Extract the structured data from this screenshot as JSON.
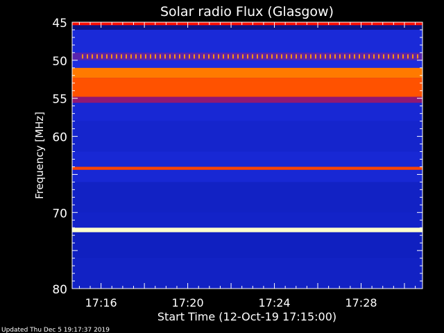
{
  "chart_data": {
    "type": "heatmap",
    "title": "Solar radio Flux (Glasgow)",
    "xlabel": "Start Time (12-Oct-19 17:15:00)",
    "ylabel": "Frequency [MHz]",
    "x_unit": "time of day (HH:MM)",
    "xlim": [
      "17:14:40",
      "17:30:50"
    ],
    "ylim": [
      45,
      80
    ],
    "y_direction": "increasing downward",
    "x_ticks": [
      "17:16",
      "17:20",
      "17:24",
      "17:28"
    ],
    "y_ticks": [
      45,
      50,
      55,
      60,
      70,
      80
    ],
    "colormap": [
      "#000030",
      "#1020c0",
      "#2030e8",
      "#ff0000",
      "#ff8800",
      "#ffffcc"
    ],
    "intensity_scale": "relative (0 = background, 1 = saturated)",
    "frequency_bands": [
      {
        "from_mhz": 45.0,
        "to_mhz": 45.4,
        "level": 0.62
      },
      {
        "from_mhz": 45.4,
        "to_mhz": 46.0,
        "level": 0.12
      },
      {
        "from_mhz": 46.0,
        "to_mhz": 49.0,
        "level": 0.32
      },
      {
        "from_mhz": 49.0,
        "to_mhz": 50.0,
        "level": 0.45
      },
      {
        "from_mhz": 50.0,
        "to_mhz": 51.0,
        "level": 0.35
      },
      {
        "from_mhz": 51.0,
        "to_mhz": 52.3,
        "level": 0.78
      },
      {
        "from_mhz": 52.3,
        "to_mhz": 54.8,
        "level": 0.72
      },
      {
        "from_mhz": 54.8,
        "to_mhz": 55.6,
        "level": 0.5
      },
      {
        "from_mhz": 55.6,
        "to_mhz": 58.0,
        "level": 0.3
      },
      {
        "from_mhz": 58.0,
        "to_mhz": 62.0,
        "level": 0.26
      },
      {
        "from_mhz": 62.0,
        "to_mhz": 64.0,
        "level": 0.3
      },
      {
        "from_mhz": 64.0,
        "to_mhz": 64.4,
        "level": 0.7
      },
      {
        "from_mhz": 64.4,
        "to_mhz": 66.0,
        "level": 0.3
      },
      {
        "from_mhz": 66.0,
        "to_mhz": 70.0,
        "level": 0.22
      },
      {
        "from_mhz": 70.0,
        "to_mhz": 72.0,
        "level": 0.24
      },
      {
        "from_mhz": 72.0,
        "to_mhz": 72.6,
        "level": 1.0
      },
      {
        "from_mhz": 72.6,
        "to_mhz": 76.0,
        "level": 0.2
      },
      {
        "from_mhz": 76.0,
        "to_mhz": 80.0,
        "level": 0.22
      }
    ],
    "periodic_interference": {
      "frequency_mhz": 49.5,
      "level": 0.82
    },
    "grid": false,
    "legend": "none"
  },
  "footer": {
    "updated": "Updated Thu Dec  5 19:17:37 2019"
  }
}
